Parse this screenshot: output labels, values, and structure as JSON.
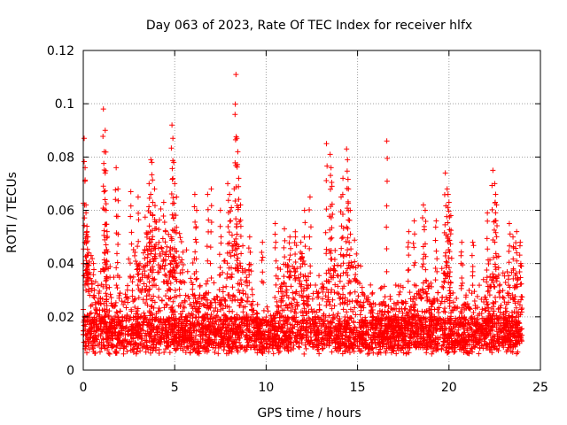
{
  "chart_data": {
    "type": "scatter",
    "title": "Day 063 of 2023, Rate Of TEC Index for receiver hlfx",
    "xlabel": "GPS time / hours",
    "ylabel": "ROTI / TECUs",
    "xlim": [
      0,
      25
    ],
    "ylim": [
      0,
      0.12
    ],
    "xticks": [
      "0",
      "5",
      "10",
      "15",
      "20",
      "25"
    ],
    "yticks": [
      "0",
      "0.02",
      "0.04",
      "0.06",
      "0.08",
      "0.1",
      "0.12"
    ],
    "grid": true,
    "marker": "+",
    "series_color": "#ff0000",
    "series": [
      {
        "name": "ROTI",
        "x": [
          0.05,
          0.1,
          0.15,
          0.2,
          0.2,
          0.25,
          0.3,
          1.1,
          1.15,
          1.2,
          1.2,
          1.25,
          1.3,
          1.8,
          1.9,
          2.6,
          3.0,
          3.6,
          3.7,
          3.75,
          3.8,
          3.9,
          4.4,
          4.5,
          4.8,
          4.85,
          4.9,
          4.95,
          5.0,
          5.1,
          6.1,
          6.2,
          6.8,
          7.0,
          7.5,
          7.9,
          8.0,
          8.1,
          8.3,
          8.35,
          8.4,
          8.45,
          8.5,
          8.6,
          9.1,
          9.8,
          10.5,
          11.0,
          11.3,
          11.6,
          11.9,
          12.1,
          12.4,
          13.3,
          13.5,
          13.55,
          13.6,
          14.1,
          14.2,
          14.4,
          14.45,
          14.5,
          14.6,
          16.6,
          17.8,
          18.1,
          18.6,
          18.7,
          19.3,
          19.8,
          19.9,
          19.95,
          20.0,
          20.1,
          20.7,
          21.3,
          22.1,
          22.4,
          22.5,
          22.55,
          22.6,
          23.3,
          23.5,
          23.7,
          23.9
        ]
      }
    ]
  }
}
